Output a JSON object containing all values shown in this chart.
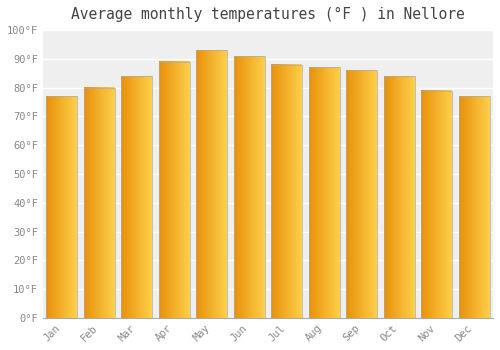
{
  "title": "Average monthly temperatures (°F ) in Nellore",
  "months": [
    "Jan",
    "Feb",
    "Mar",
    "Apr",
    "May",
    "Jun",
    "Jul",
    "Aug",
    "Sep",
    "Oct",
    "Nov",
    "Dec"
  ],
  "values": [
    77,
    80,
    84,
    89,
    93,
    91,
    88,
    87,
    86,
    84,
    79,
    77
  ],
  "bar_color_left": "#E8900A",
  "bar_color_right": "#FFD04A",
  "bar_edge_color": "#AAAAAA",
  "background_color": "#FFFFFF",
  "plot_bg_color": "#EFEFEF",
  "grid_color": "#FFFFFF",
  "tick_color": "#888888",
  "title_color": "#444444",
  "ylim": [
    0,
    100
  ],
  "ytick_step": 10,
  "xlabel_fontsize": 7.5,
  "ylabel_fontsize": 7.5,
  "title_fontsize": 10.5,
  "bar_width": 0.82
}
